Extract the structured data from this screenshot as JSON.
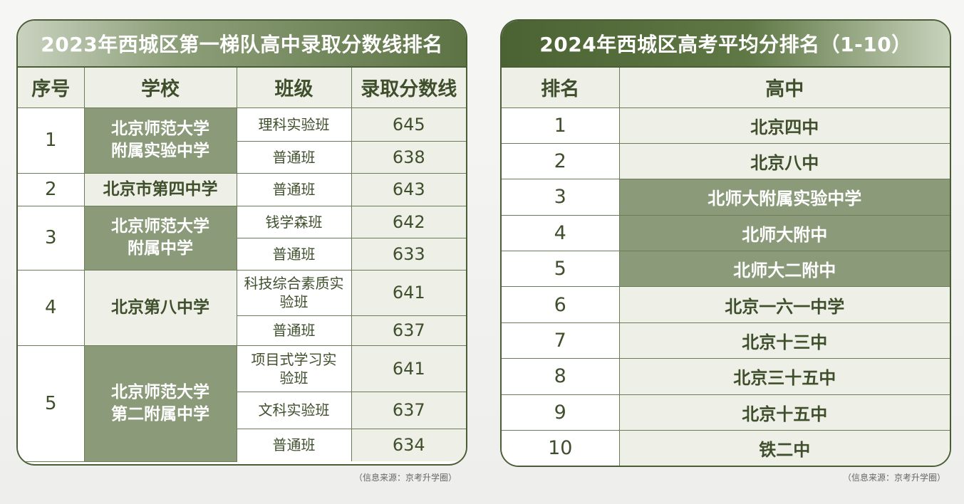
{
  "left": {
    "title": "2023年西城区第一梯队高中录取分数线排名",
    "headers": [
      "序号",
      "学校",
      "班级",
      "录取分数线"
    ],
    "groups": [
      {
        "index": "1",
        "school": "北京师范大学附属实验中学",
        "classes": [
          {
            "name": "理科实验班",
            "score": "645"
          },
          {
            "name": "普通班",
            "score": "638"
          }
        ]
      },
      {
        "index": "2",
        "school": "北京市第四中学",
        "classes": [
          {
            "name": "普通班",
            "score": "643"
          }
        ]
      },
      {
        "index": "3",
        "school": "北京师范大学附属中学",
        "classes": [
          {
            "name": "钱学森班",
            "score": "642"
          },
          {
            "name": "普通班",
            "score": "633"
          }
        ]
      },
      {
        "index": "4",
        "school": "北京第八中学",
        "classes": [
          {
            "name": "科技综合素质实验班",
            "score": "641"
          },
          {
            "name": "普通班",
            "score": "637"
          }
        ]
      },
      {
        "index": "5",
        "school": "北京师范大学第二附属中学",
        "classes": [
          {
            "name": "项目式学习实验班",
            "score": "641"
          },
          {
            "name": "文科实验班",
            "score": "637"
          },
          {
            "name": "普通班",
            "score": "634"
          }
        ]
      }
    ],
    "source": "（信息来源：京考升学圈）"
  },
  "right": {
    "title": "2024年西城区高考平均分排名（1-10）",
    "headers": [
      "排名",
      "高中"
    ],
    "rows": [
      {
        "rank": "1",
        "school": "北京四中"
      },
      {
        "rank": "2",
        "school": "北京八中"
      },
      {
        "rank": "3",
        "school": "北师大附属实验中学"
      },
      {
        "rank": "4",
        "school": "北师大附中"
      },
      {
        "rank": "5",
        "school": "北师大二附中"
      },
      {
        "rank": "6",
        "school": "北京一六一中学"
      },
      {
        "rank": "7",
        "school": "北京十三中"
      },
      {
        "rank": "8",
        "school": "北京三十五中"
      },
      {
        "rank": "9",
        "school": "北京十五中"
      },
      {
        "rank": "10",
        "school": "铁二中"
      }
    ],
    "source": "（信息来源：京考升学圈）"
  },
  "colors": {
    "border": "#4a5e36",
    "highlight": "#8b9b7a",
    "light": "#eef0e8",
    "text": "#3f4f2c"
  }
}
